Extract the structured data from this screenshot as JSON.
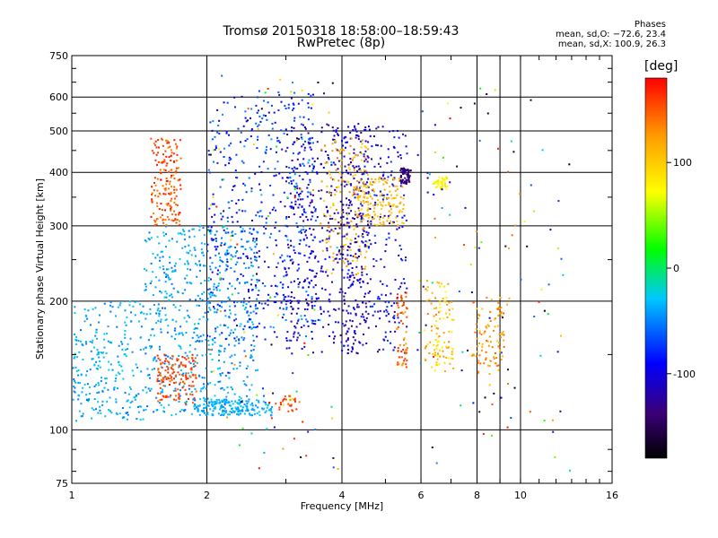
{
  "chart_data": {
    "type": "scatter",
    "title": "Tromsø 20150318 18:58:00–18:59:43",
    "subtitle": "RwPretec (8p)",
    "legend_title": "Phases",
    "stats": [
      "mean, sd,O: −72.6, 23.4",
      "mean, sd,X: 100.9, 26.3"
    ],
    "xlabel": "Frequency [MHz]",
    "ylabel": "Stationary phase Virtual Height [km]",
    "xscale": "log",
    "yscale": "log",
    "xlim": [
      1,
      16
    ],
    "ylim": [
      75,
      750
    ],
    "x_ticks": [
      1,
      2,
      4,
      6,
      8,
      10,
      16
    ],
    "x_minor": [
      9
    ],
    "y_ticks": [
      75,
      100,
      200,
      300,
      400,
      500,
      600,
      750
    ],
    "grid": true,
    "colorbar": {
      "label": "[deg]",
      "range": [
        -180,
        180
      ],
      "ticks": [
        100,
        0,
        -100
      ],
      "colors": [
        "#000000",
        "#3a0078",
        "#0000ff",
        "#00c8ff",
        "#00ff00",
        "#ffff00",
        "#ff9a00",
        "#ff0000"
      ]
    },
    "clusters": [
      {
        "f": [
          1.0,
          1.45
        ],
        "h": [
          105,
          200
        ],
        "c": [
          -55,
          -20
        ],
        "n": 260
      },
      {
        "f": [
          1.45,
          2.6
        ],
        "h": [
          108,
          300
        ],
        "c": [
          -60,
          -20
        ],
        "n": 620
      },
      {
        "f": [
          1.5,
          1.75
        ],
        "h": [
          300,
          480
        ],
        "c": [
          130,
          175
        ],
        "n": 170
      },
      {
        "f": [
          1.55,
          1.9
        ],
        "h": [
          115,
          150
        ],
        "c": [
          140,
          170
        ],
        "n": 140
      },
      {
        "f": [
          2.0,
          3.5
        ],
        "h": [
          160,
          620
        ],
        "c": [
          -110,
          -45
        ],
        "n": 520
      },
      {
        "f": [
          1.9,
          2.8
        ],
        "h": [
          108,
          118
        ],
        "c": [
          -45,
          -25
        ],
        "n": 160
      },
      {
        "f": [
          3.0,
          4.6
        ],
        "h": [
          150,
          520
        ],
        "c": [
          -135,
          -90
        ],
        "n": 440
      },
      {
        "f": [
          3.6,
          4.6
        ],
        "h": [
          230,
          480
        ],
        "c": [
          90,
          140
        ],
        "n": 160
      },
      {
        "f": [
          4.0,
          5.6
        ],
        "h": [
          150,
          520
        ],
        "c": [
          -130,
          -70
        ],
        "n": 300
      },
      {
        "f": [
          4.3,
          5.5
        ],
        "h": [
          300,
          390
        ],
        "c": [
          95,
          125
        ],
        "n": 140
      },
      {
        "f": [
          5.3,
          5.6
        ],
        "h": [
          140,
          210
        ],
        "c": [
          120,
          170
        ],
        "n": 60
      },
      {
        "f": [
          5.4,
          5.7
        ],
        "h": [
          375,
          410
        ],
        "c": [
          -150,
          -125
        ],
        "n": 60
      },
      {
        "f": [
          6.1,
          7.1
        ],
        "h": [
          135,
          225
        ],
        "c": [
          70,
          140
        ],
        "n": 110
      },
      {
        "f": [
          6.4,
          6.9
        ],
        "h": [
          365,
          390
        ],
        "c": [
          60,
          90
        ],
        "n": 40
      },
      {
        "f": [
          7.8,
          9.2
        ],
        "h": [
          135,
          205
        ],
        "c": [
          100,
          150
        ],
        "n": 100
      },
      {
        "f": [
          2.9,
          3.2
        ],
        "h": [
          110,
          120
        ],
        "c": [
          150,
          165
        ],
        "n": 25
      },
      {
        "f": [
          5.9,
          13.0
        ],
        "h": [
          80,
          650
        ],
        "c": [
          -180,
          180
        ],
        "n": 110
      },
      {
        "f": [
          2.0,
          4.0
        ],
        "h": [
          80,
          680
        ],
        "c": [
          -180,
          180
        ],
        "n": 120
      }
    ],
    "point_count_note": "approx. several thousand echoes; colour = phase [deg]"
  }
}
